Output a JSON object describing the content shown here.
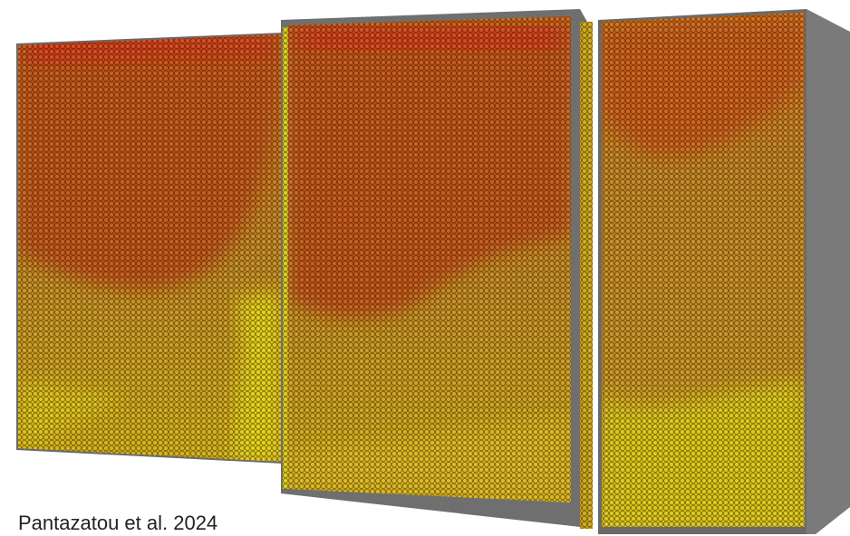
{
  "caption": "Pantazatou et al. 2024"
}
